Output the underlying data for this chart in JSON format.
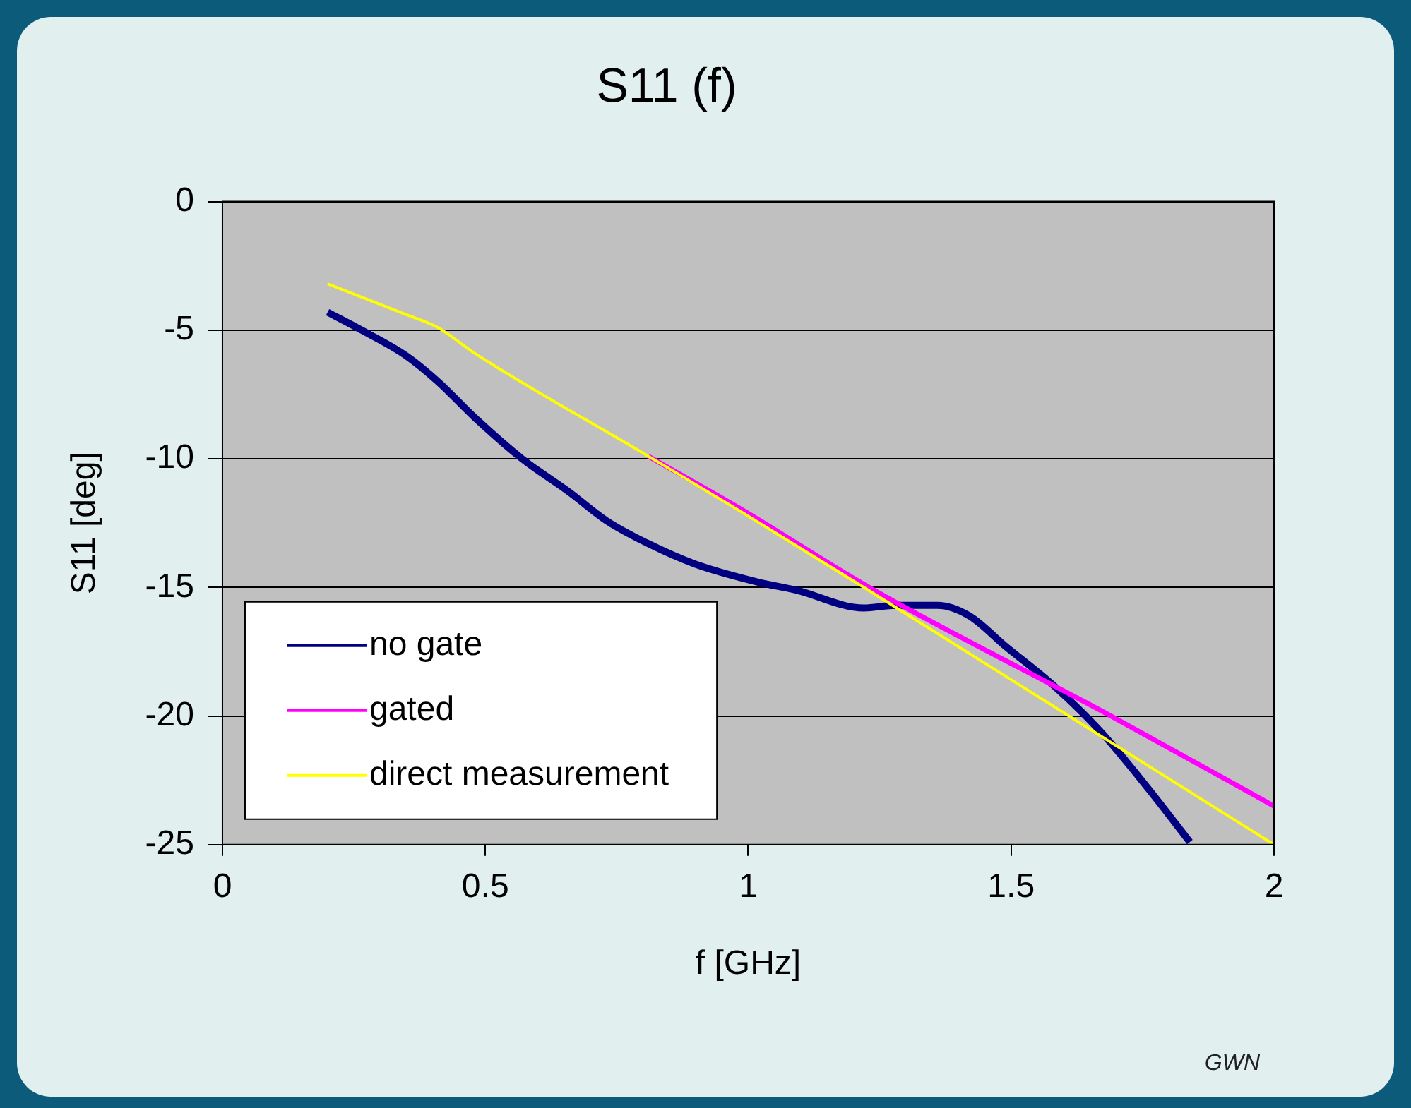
{
  "chart_data": {
    "type": "line",
    "title": "S11 (f)",
    "xlabel": "f [GHz]",
    "ylabel": "S11 [deg]",
    "xlim": [
      0,
      2
    ],
    "xticks": [
      0,
      0.5,
      1,
      1.5,
      2
    ],
    "ylim": [
      -25,
      0
    ],
    "yticks": [
      -25,
      -20,
      -15,
      -10,
      -5,
      0
    ],
    "grid": "y",
    "legend": "bottom left",
    "marker": "none",
    "line_style": "solid",
    "annotations": [
      "GWN"
    ],
    "series": [
      {
        "name": "no gate",
        "color": "#000080",
        "x": [
          0.2,
          0.265,
          0.35,
          0.41,
          0.48,
          0.57,
          0.66,
          0.73,
          0.81,
          0.9,
          1.02,
          1.09,
          1.22,
          1.28,
          1.36,
          1.42,
          1.49,
          1.58,
          1.67,
          1.76,
          1.84
        ],
        "values": [
          -4.3,
          -5.0,
          -6.0,
          -7.0,
          -8.4,
          -10.0,
          -11.3,
          -12.4,
          -13.3,
          -14.1,
          -14.8,
          -15.1,
          -15.8,
          -15.7,
          -15.7,
          -16.1,
          -17.3,
          -18.8,
          -20.6,
          -22.8,
          -24.9
        ]
      },
      {
        "name": "gated",
        "color": "#ff00ff",
        "x": [
          0.81,
          0.99,
          1.23,
          1.69,
          2.0
        ],
        "values": [
          -9.9,
          -12.0,
          -15.0,
          -20.0,
          -23.5
        ]
      },
      {
        "name": "direct measurement",
        "color": "#ffff00",
        "x": [
          0.2,
          0.35,
          0.41,
          0.48,
          0.81,
          0.99,
          1.22,
          1.61,
          2.0
        ],
        "values": [
          -3.2,
          -4.4,
          -4.9,
          -5.9,
          -9.9,
          -12.1,
          -15.0,
          -20.0,
          -25.0
        ]
      }
    ]
  }
}
